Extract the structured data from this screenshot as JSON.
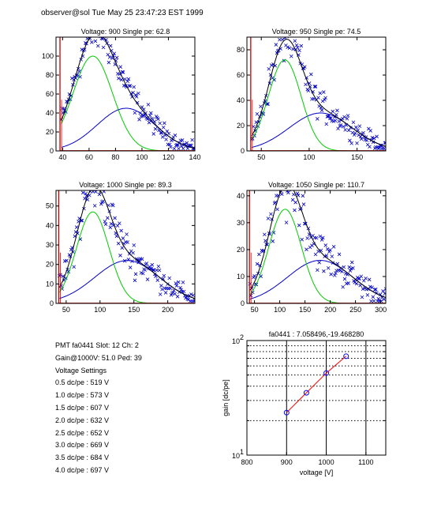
{
  "header": {
    "title": "observer@sol  Tue May 25 23:47:23 EST 1999"
  },
  "info": {
    "pmt_line": "PMT fa0441 Slot: 12 Ch: 2",
    "gain_line": "Gain@1000V: 51.0 Ped: 39",
    "settings_title": "Voltage Settings",
    "settings": [
      "0.5 dc/pe : 519 V",
      "1.0 dc/pe : 573 V",
      "1.5 dc/pe : 607 V",
      "2.0 dc/pe : 632 V",
      "2.5 dc/pe : 652 V",
      "3.0 dc/pe : 669 V",
      "3.5 dc/pe : 684 V",
      "4.0 dc/pe : 697 V"
    ]
  },
  "colors": {
    "data": "#0000c8",
    "total": "#000000",
    "single_pe": "#00cc00",
    "multi_pe": "#0000cc",
    "pedestal": "#cc0000",
    "fit_line": "#ff0000",
    "marker": "#0000ff"
  },
  "chart_data": [
    {
      "type": "line",
      "title": "Voltage: 900 Single pe: 62.8",
      "xlim": [
        35,
        140
      ],
      "ylim": [
        0,
        120
      ],
      "xticks": [
        40,
        60,
        80,
        100,
        120,
        140
      ],
      "yticks": [
        0,
        20,
        40,
        60,
        80,
        100
      ],
      "pedestal_x": 38,
      "single_pe": {
        "mean": 62.8,
        "amp": 100,
        "sigma": 15
      },
      "multi_pe": {
        "mean": 88,
        "amp": 45,
        "sigma": 22
      }
    },
    {
      "type": "line",
      "title": "Voltage: 950 Single pe: 74.5",
      "xlim": [
        35,
        180
      ],
      "ylim": [
        0,
        90
      ],
      "xticks": [
        50,
        100,
        150
      ],
      "yticks": [
        0,
        20,
        40,
        60,
        80
      ],
      "pedestal_x": 39,
      "single_pe": {
        "mean": 74.5,
        "amp": 72,
        "sigma": 17
      },
      "multi_pe": {
        "mean": 112,
        "amp": 30,
        "sigma": 33
      }
    },
    {
      "type": "line",
      "title": "Voltage: 1000 Single pe: 89.3",
      "xlim": [
        35,
        240
      ],
      "ylim": [
        0,
        58
      ],
      "xticks": [
        50,
        100,
        150,
        200
      ],
      "yticks": [
        0,
        10,
        20,
        30,
        40,
        50
      ],
      "pedestal_x": 39,
      "single_pe": {
        "mean": 89.3,
        "amp": 47,
        "sigma": 24
      },
      "multi_pe": {
        "mean": 140,
        "amp": 22,
        "sigma": 48
      }
    },
    {
      "type": "line",
      "title": "Voltage: 1050 Single pe: 110.7",
      "xlim": [
        35,
        310
      ],
      "ylim": [
        0,
        42
      ],
      "xticks": [
        50,
        100,
        150,
        200,
        250,
        300
      ],
      "yticks": [
        0,
        10,
        20,
        30,
        40
      ],
      "pedestal_x": 40,
      "single_pe": {
        "mean": 110.7,
        "amp": 35,
        "sigma": 32
      },
      "multi_pe": {
        "mean": 180,
        "amp": 16,
        "sigma": 65
      }
    },
    {
      "type": "line",
      "title": "fa0441 : 7.058496,-19.468280",
      "xlabel": "voltage [V]",
      "ylabel": "gain [dc/pe]",
      "xlim": [
        800,
        1150
      ],
      "ylim": [
        10,
        100
      ],
      "yscale": "log",
      "xticks": [
        800,
        900,
        1000,
        1100
      ],
      "ytick_labels": [
        "10",
        "10"
      ],
      "ytick_exponents": [
        "1",
        "2"
      ],
      "x": [
        900,
        950,
        1000,
        1050
      ],
      "y": [
        23.5,
        35,
        52,
        73
      ],
      "grid": true
    }
  ]
}
